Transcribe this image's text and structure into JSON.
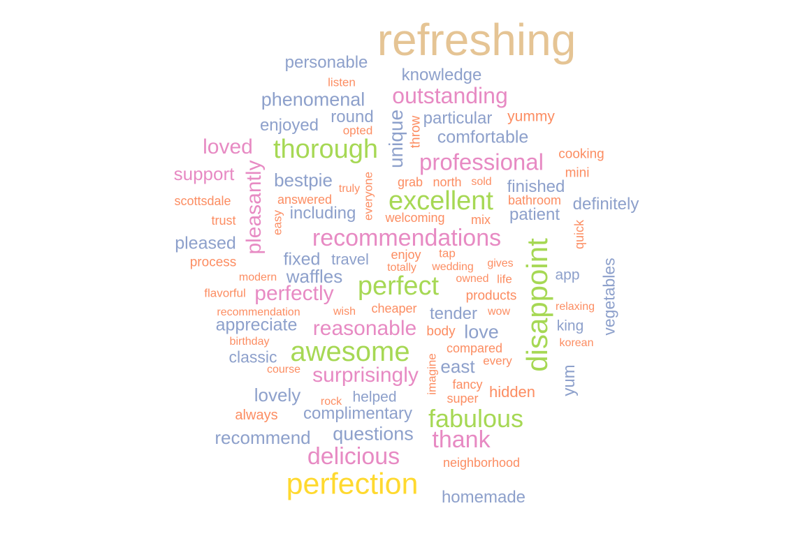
{
  "palette": {
    "tan": "#e5c494",
    "yellow": "#ffd92f",
    "green": "#a6d854",
    "pink": "#e78ac3",
    "blue": "#8da0cb",
    "orange": "#fc8d62"
  },
  "words": [
    {
      "text": "refreshing",
      "color": "tan"
    },
    {
      "text": "personable",
      "color": "blue"
    },
    {
      "text": "knowledge",
      "color": "blue"
    },
    {
      "text": "listen",
      "color": "orange"
    },
    {
      "text": "outstanding",
      "color": "pink"
    },
    {
      "text": "phenomenal",
      "color": "blue"
    },
    {
      "text": "round",
      "color": "blue"
    },
    {
      "text": "unique",
      "color": "blue"
    },
    {
      "text": "throw",
      "color": "orange"
    },
    {
      "text": "particular",
      "color": "blue"
    },
    {
      "text": "yummy",
      "color": "orange"
    },
    {
      "text": "enjoyed",
      "color": "blue"
    },
    {
      "text": "opted",
      "color": "orange"
    },
    {
      "text": "comfortable",
      "color": "blue"
    },
    {
      "text": "loved",
      "color": "pink"
    },
    {
      "text": "thorough",
      "color": "green"
    },
    {
      "text": "cooking",
      "color": "orange"
    },
    {
      "text": "professional",
      "color": "pink"
    },
    {
      "text": "support",
      "color": "pink"
    },
    {
      "text": "pleasantly",
      "color": "pink"
    },
    {
      "text": "bestpie",
      "color": "blue"
    },
    {
      "text": "everyone",
      "color": "orange"
    },
    {
      "text": "mini",
      "color": "orange"
    },
    {
      "text": "grab",
      "color": "orange"
    },
    {
      "text": "north",
      "color": "orange"
    },
    {
      "text": "sold",
      "color": "orange"
    },
    {
      "text": "finished",
      "color": "blue"
    },
    {
      "text": "truly",
      "color": "orange"
    },
    {
      "text": "scottsdale",
      "color": "orange"
    },
    {
      "text": "answered",
      "color": "orange"
    },
    {
      "text": "excellent",
      "color": "green"
    },
    {
      "text": "bathroom",
      "color": "orange"
    },
    {
      "text": "definitely",
      "color": "blue"
    },
    {
      "text": "easy",
      "color": "orange"
    },
    {
      "text": "including",
      "color": "blue"
    },
    {
      "text": "patient",
      "color": "blue"
    },
    {
      "text": "trust",
      "color": "orange"
    },
    {
      "text": "welcoming",
      "color": "orange"
    },
    {
      "text": "mix",
      "color": "orange"
    },
    {
      "text": "quick",
      "color": "orange"
    },
    {
      "text": "recommendations",
      "color": "pink"
    },
    {
      "text": "disappoint",
      "color": "green"
    },
    {
      "text": "pleased",
      "color": "blue"
    },
    {
      "text": "fixed",
      "color": "blue"
    },
    {
      "text": "travel",
      "color": "blue"
    },
    {
      "text": "enjoy",
      "color": "orange"
    },
    {
      "text": "tap",
      "color": "orange"
    },
    {
      "text": "process",
      "color": "orange"
    },
    {
      "text": "totally",
      "color": "orange"
    },
    {
      "text": "wedding",
      "color": "orange"
    },
    {
      "text": "gives",
      "color": "orange"
    },
    {
      "text": "vegetables",
      "color": "blue"
    },
    {
      "text": "modern",
      "color": "orange"
    },
    {
      "text": "waffles",
      "color": "blue"
    },
    {
      "text": "app",
      "color": "blue"
    },
    {
      "text": "owned",
      "color": "orange"
    },
    {
      "text": "life",
      "color": "orange"
    },
    {
      "text": "perfect",
      "color": "green"
    },
    {
      "text": "flavorful",
      "color": "orange"
    },
    {
      "text": "perfectly",
      "color": "pink"
    },
    {
      "text": "products",
      "color": "orange"
    },
    {
      "text": "relaxing",
      "color": "orange"
    },
    {
      "text": "recommendation",
      "color": "orange"
    },
    {
      "text": "wish",
      "color": "orange"
    },
    {
      "text": "cheaper",
      "color": "orange"
    },
    {
      "text": "tender",
      "color": "blue"
    },
    {
      "text": "wow",
      "color": "orange"
    },
    {
      "text": "appreciate",
      "color": "blue"
    },
    {
      "text": "reasonable",
      "color": "pink"
    },
    {
      "text": "body",
      "color": "orange"
    },
    {
      "text": "love",
      "color": "blue"
    },
    {
      "text": "king",
      "color": "blue"
    },
    {
      "text": "birthday",
      "color": "orange"
    },
    {
      "text": "awesome",
      "color": "green"
    },
    {
      "text": "compared",
      "color": "orange"
    },
    {
      "text": "korean",
      "color": "orange"
    },
    {
      "text": "classic",
      "color": "blue"
    },
    {
      "text": "imagine",
      "color": "orange"
    },
    {
      "text": "every",
      "color": "orange"
    },
    {
      "text": "course",
      "color": "orange"
    },
    {
      "text": "east",
      "color": "blue"
    },
    {
      "text": "yum",
      "color": "blue"
    },
    {
      "text": "surprisingly",
      "color": "pink"
    },
    {
      "text": "fancy",
      "color": "orange"
    },
    {
      "text": "lovely",
      "color": "blue"
    },
    {
      "text": "helped",
      "color": "blue"
    },
    {
      "text": "hidden",
      "color": "orange"
    },
    {
      "text": "rock",
      "color": "orange"
    },
    {
      "text": "super",
      "color": "orange"
    },
    {
      "text": "always",
      "color": "orange"
    },
    {
      "text": "complimentary",
      "color": "blue"
    },
    {
      "text": "fabulous",
      "color": "green"
    },
    {
      "text": "recommend",
      "color": "blue"
    },
    {
      "text": "questions",
      "color": "blue"
    },
    {
      "text": "thank",
      "color": "pink"
    },
    {
      "text": "delicious",
      "color": "pink"
    },
    {
      "text": "neighborhood",
      "color": "orange"
    },
    {
      "text": "perfection",
      "color": "yellow"
    },
    {
      "text": "homemade",
      "color": "blue"
    }
  ]
}
